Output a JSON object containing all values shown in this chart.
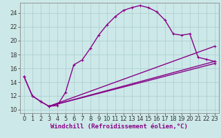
{
  "xlabel": "Windchill (Refroidissement éolien,°C)",
  "bg_color": "#cce8e8",
  "line_color": "#880088",
  "grid_color": "#aacccc",
  "xlim": [
    -0.5,
    23.5
  ],
  "ylim": [
    9.5,
    25.5
  ],
  "xticks": [
    0,
    1,
    2,
    3,
    4,
    5,
    6,
    7,
    8,
    9,
    10,
    11,
    12,
    13,
    14,
    15,
    16,
    17,
    18,
    19,
    20,
    21,
    22,
    23
  ],
  "yticks": [
    10,
    12,
    14,
    16,
    18,
    20,
    22,
    24
  ],
  "curve_x": [
    0,
    1,
    2,
    3,
    4,
    5,
    6,
    7,
    8,
    9,
    10,
    11,
    12,
    13,
    14,
    15,
    16,
    17,
    18,
    19,
    20,
    21,
    22,
    23
  ],
  "curve_y": [
    14.8,
    12.0,
    11.2,
    10.5,
    10.6,
    12.5,
    16.5,
    17.2,
    18.9,
    20.8,
    22.3,
    23.5,
    24.4,
    24.8,
    25.1,
    24.8,
    24.2,
    23.0,
    21.0,
    20.8,
    21.0,
    17.6,
    17.3,
    17.0
  ],
  "tri_line1_x": [
    0,
    1,
    2,
    3,
    23
  ],
  "tri_line1_y": [
    14.8,
    12.0,
    11.2,
    10.5,
    17.0
  ],
  "tri_line2_x": [
    3,
    23
  ],
  "tri_line2_y": [
    10.5,
    19.2
  ],
  "tri_line3_x": [
    3,
    23
  ],
  "tri_line3_y": [
    10.5,
    16.7
  ],
  "marker_size": 3.5,
  "line_width": 1.0,
  "xlabel_fontsize": 6.5,
  "tick_fontsize": 6.0
}
